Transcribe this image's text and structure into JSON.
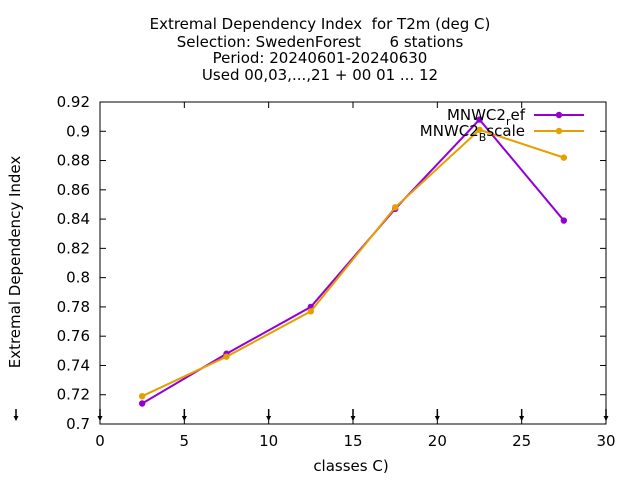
{
  "chart_data": {
    "type": "line",
    "title_lines": [
      "Extremal Dependency Index  for T2m (deg C)",
      "Selection: SwedenForest      6 stations",
      "Period: 20240601-20240630",
      "Used 00,03,...,21 + 00 01 ... 12"
    ],
    "xlabel": "classes C)",
    "ylabel": "Extremal Dependency Index",
    "xlim": [
      0,
      30
    ],
    "ylim": [
      0.7,
      0.92
    ],
    "xticks": [
      0,
      5,
      10,
      15,
      20,
      25,
      30
    ],
    "yticks": [
      0.7,
      0.72,
      0.74,
      0.76,
      0.78,
      0.8,
      0.82,
      0.84,
      0.86,
      0.88,
      0.9,
      0.92
    ],
    "x": [
      2.5,
      7.5,
      12.5,
      17.5,
      22.5,
      27.5
    ],
    "series": [
      {
        "name_base": "MNWC2",
        "name_sub": "r",
        "name_rest": "ef",
        "color": "#9400d3",
        "values": [
          0.714,
          0.748,
          0.78,
          0.847,
          0.908,
          0.839
        ]
      },
      {
        "name_base": "MNWC2",
        "name_sub": "B",
        "name_rest": "scale",
        "color": "#e69f00",
        "values": [
          0.719,
          0.746,
          0.777,
          0.848,
          0.901,
          0.882
        ]
      }
    ],
    "grid": false,
    "legend_position": "top-right"
  }
}
